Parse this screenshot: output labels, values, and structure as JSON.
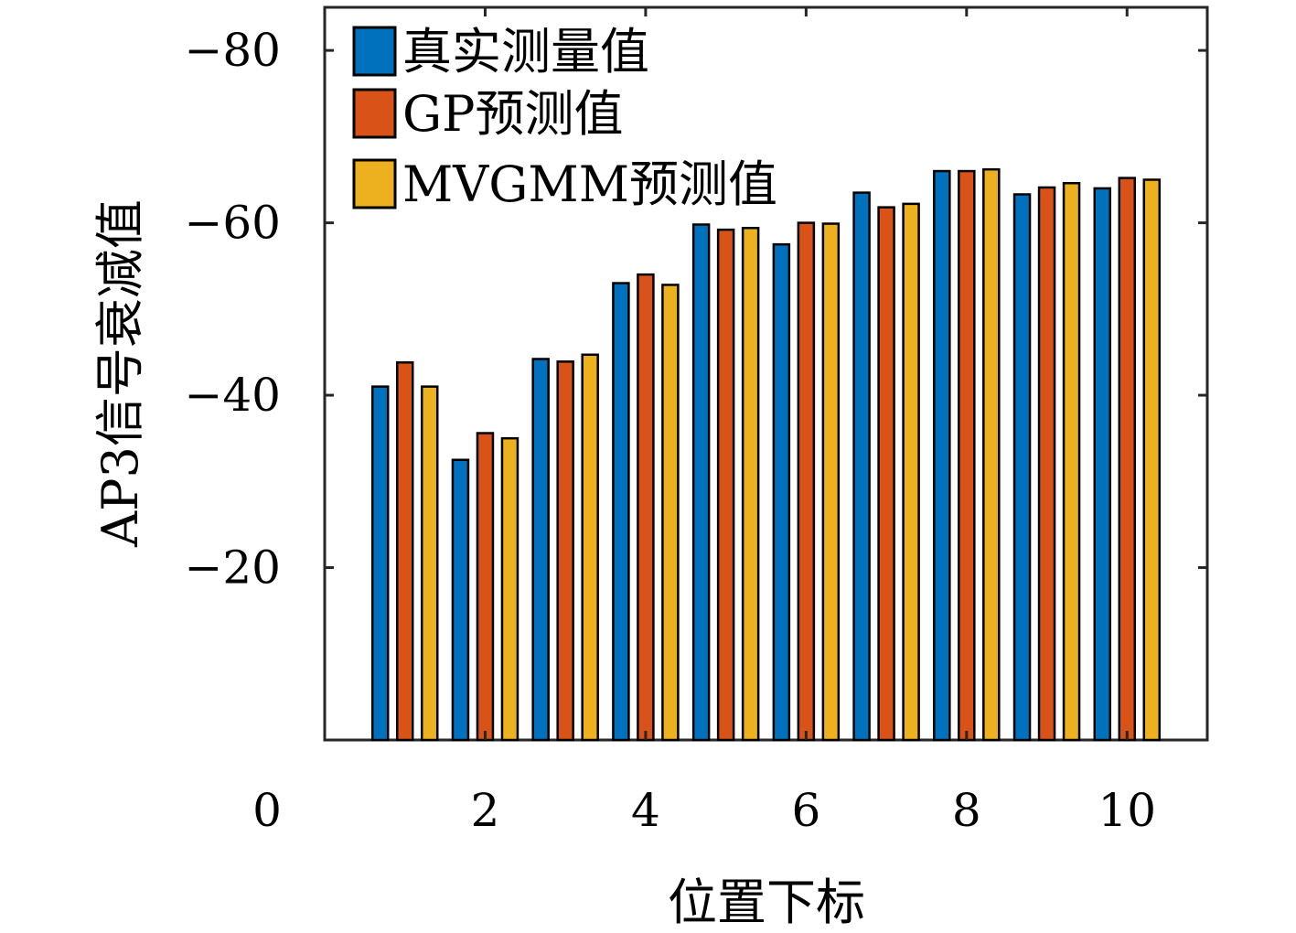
{
  "chart_data": {
    "type": "bar",
    "categories": [
      "1",
      "2",
      "3",
      "4",
      "5",
      "6",
      "7",
      "8",
      "9",
      "10"
    ],
    "series": [
      {
        "name": "真实测量值",
        "color": "#0072BD",
        "values": [
          -41.0,
          -32.5,
          -44.2,
          -53.0,
          -59.8,
          -57.5,
          -63.5,
          -66.0,
          -63.3,
          -64.0
        ]
      },
      {
        "name": "GP预测值",
        "color": "#D95319",
        "values": [
          -43.8,
          -35.6,
          -43.9,
          -54.0,
          -59.2,
          -60.0,
          -61.8,
          -66.0,
          -64.1,
          -65.2
        ]
      },
      {
        "name": "MVGMM预测值",
        "color": "#EDB120",
        "values": [
          -41.0,
          -35.0,
          -44.7,
          -52.8,
          -59.4,
          -59.9,
          -62.2,
          -66.2,
          -64.6,
          -65.0
        ]
      }
    ],
    "xlabel": "位置下标",
    "ylabel": "AP3信号衰减值",
    "xlim": [
      0,
      11
    ],
    "ylim": [
      0,
      -85
    ],
    "y_direction": "reversed",
    "x_ticks": [
      0,
      2,
      4,
      6,
      8,
      10
    ],
    "x_tick_labels": [
      "0",
      "2",
      "4",
      "6",
      "8",
      "10"
    ],
    "y_ticks": [
      -20,
      -40,
      -60,
      -80
    ],
    "y_tick_labels": [
      "−20",
      "−40",
      "−60",
      "−80"
    ],
    "grid": false,
    "legend_position": "top-left"
  }
}
